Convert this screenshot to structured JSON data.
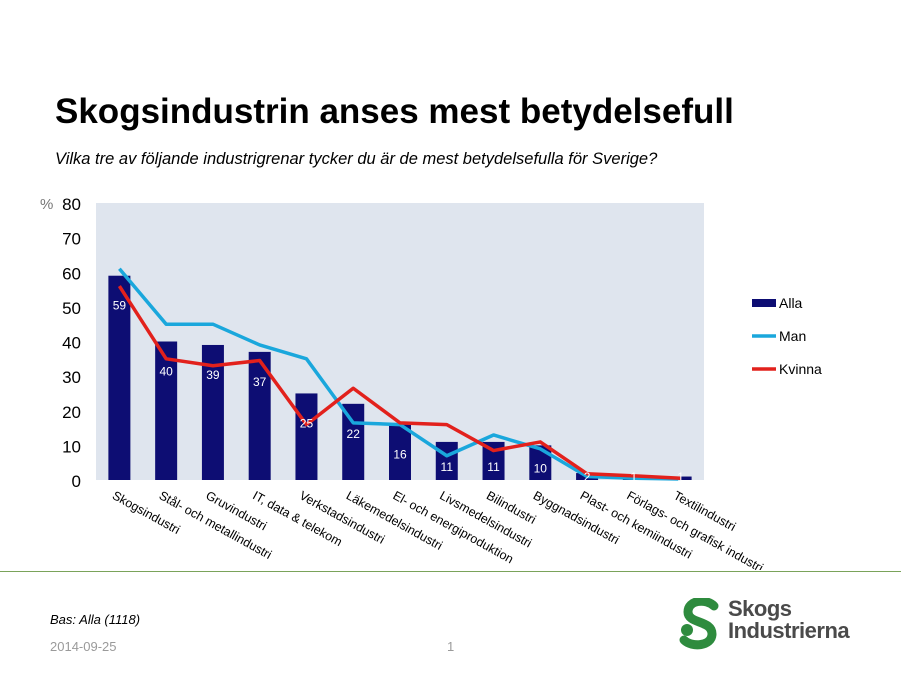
{
  "title": "Skogsindustrin anses mest betydelsefull",
  "subtitle": "Vilka tre av följande industrigrenar tycker du är de mest  betydelsefulla för Sverige?",
  "footer": {
    "base": "Bas: Alla (1118)",
    "date": "2014-09-25",
    "page": "1",
    "logo_line1": "Skogs",
    "logo_line2": "Industrierna",
    "logo_color": "#2e8b3e"
  },
  "chart_data": {
    "type": "bar",
    "ylabel": "%",
    "ylim": [
      0,
      80
    ],
    "yticks": [
      0,
      10,
      20,
      30,
      40,
      50,
      60,
      70,
      80
    ],
    "plot_background": "#dfe5ee",
    "legend_position": "right",
    "categories": [
      "Skogsindustri",
      "Stål- och metallindustri",
      "Gruvindustri",
      "IT, data & telekom",
      "Verkstadsindustri",
      "Läkemedelsindustri",
      "El- och energiproduktion",
      "Livsmedelsindustri",
      "Bilindustri",
      "Byggnadsindustri",
      "Plast- och kemiindustri",
      "Förlags- och grafisk industri",
      "Textilindustri"
    ],
    "series": [
      {
        "name": "Alla",
        "kind": "bar",
        "color": "#0d0d73",
        "values": [
          59,
          40,
          39,
          37,
          25,
          22,
          16,
          11,
          11,
          10,
          2,
          1,
          1
        ],
        "labels": [
          "59",
          "40",
          "39",
          "37",
          "25",
          "22",
          "16",
          "11",
          "11",
          "10",
          "2",
          "1",
          "1"
        ]
      },
      {
        "name": "Man",
        "kind": "line",
        "color": "#1aa7dc",
        "values": [
          61,
          45,
          45,
          39,
          35,
          16.5,
          16,
          7,
          13,
          9,
          1,
          0.5,
          0.3
        ]
      },
      {
        "name": "Kvinna",
        "kind": "line",
        "color": "#e2211c",
        "values": [
          56,
          35,
          33,
          34.5,
          16,
          26.5,
          16.5,
          16,
          8.5,
          11,
          1.8,
          1.2,
          0.5
        ]
      }
    ]
  }
}
